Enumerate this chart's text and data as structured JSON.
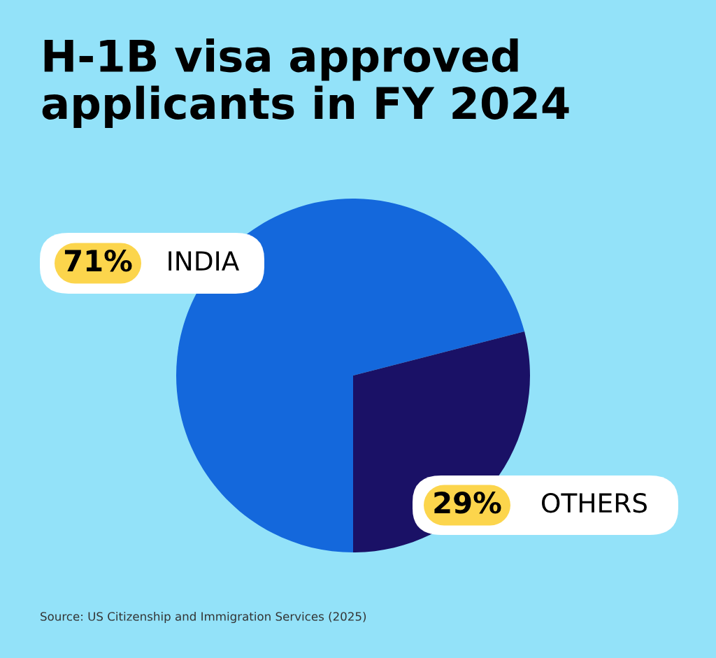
{
  "chart_data": {
    "type": "pie",
    "title": "H-1B visa approved\napplicants in FY 2024",
    "categories": [
      "INDIA",
      "OTHERS"
    ],
    "values": [
      71,
      29
    ],
    "colors": [
      "#1468dc",
      "#1a1166"
    ],
    "value_labels": [
      "71%",
      "29%"
    ],
    "annotations": [
      "Source: US Citizenship and Immigration Services (2025)"
    ],
    "legend": false
  }
}
